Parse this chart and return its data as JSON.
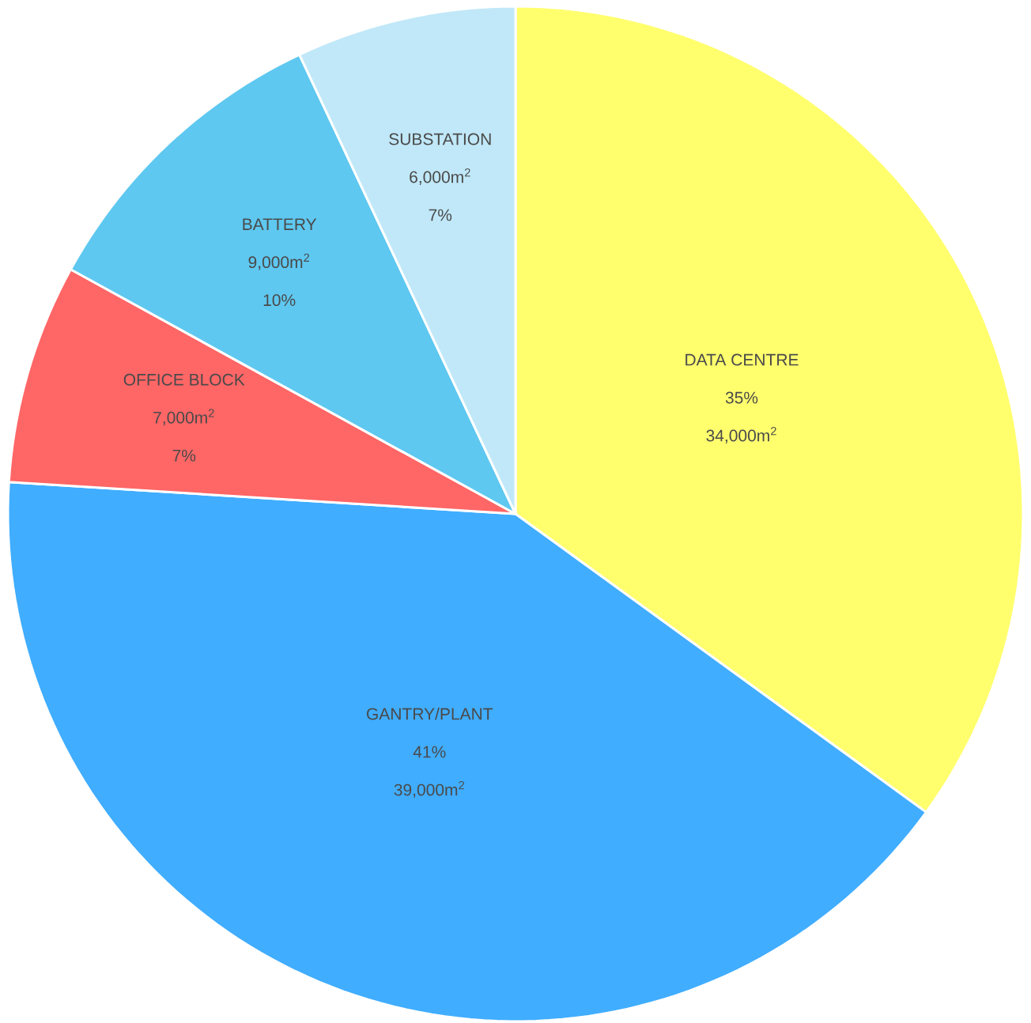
{
  "chart_data": {
    "type": "pie",
    "categories": [
      "DATA CENTRE",
      "GANTRY/PLANT",
      "OFFICE BLOCK",
      "BATTERY",
      "SUBSTATION"
    ],
    "values": [
      35,
      41,
      7,
      10,
      7
    ],
    "value_labels": [
      "35%",
      "41%",
      "7%",
      "10%",
      "7%"
    ],
    "annotations": [
      "34,000m$^{2}$",
      "39,000m$^{2}$",
      "7,000m$^{2}$",
      "9,000m$^{2}$",
      "6,000m$^{2}$"
    ],
    "colors": [
      "#ffff6e",
      "#40adff",
      "#ff6666",
      "#5ec8f0",
      "#c0e8f8"
    ]
  }
}
